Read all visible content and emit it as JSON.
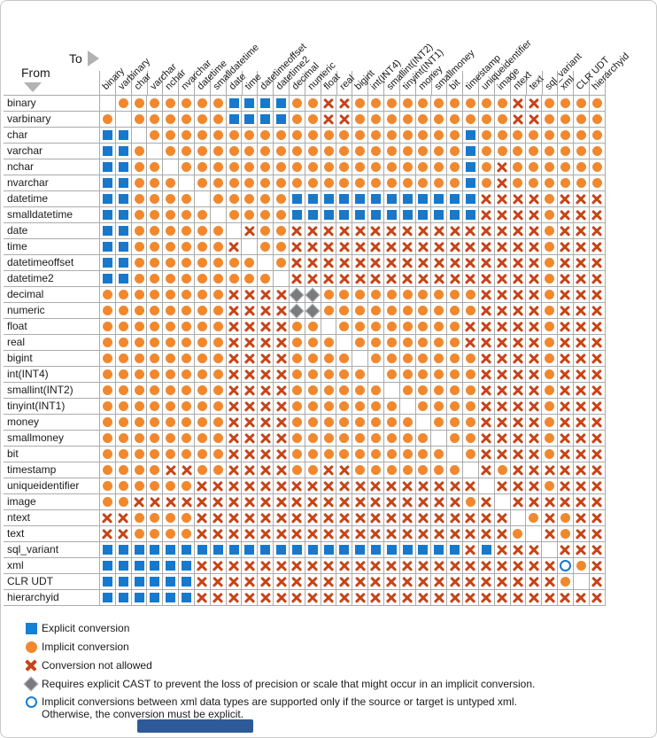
{
  "axis": {
    "from_label": "From",
    "to_label": "To"
  },
  "colors": {
    "explicit_blue": "#1679cd",
    "implicit_orange": "#f1882e",
    "not_allowed_red": "#c64418",
    "cast_diamond_gray": "#7a7b7e",
    "xml_open_circle_blue": "#1680d2",
    "grid_line": "#ababab",
    "bottom_bar_blue": "#2e5a97"
  },
  "legend": [
    {
      "symbol": "explicit-square",
      "code": "E",
      "label": "Explicit conversion"
    },
    {
      "symbol": "implicit-circle",
      "code": "I",
      "label": "Implicit conversion"
    },
    {
      "symbol": "not-allowed-x",
      "code": "X",
      "label": "Conversion not allowed"
    },
    {
      "symbol": "cast-diamond",
      "code": "D",
      "label": "Requires explicit CAST to prevent the loss of precision or scale that might occur in an implicit conversion."
    },
    {
      "symbol": "xml-open-circle",
      "code": "O",
      "label": "Implicit conversions between xml data types are supported only if the source or target is untyped xml.",
      "label_line2": "Otherwise, the conversion must be explicit."
    }
  ],
  "chart_data": {
    "type": "heatmap",
    "row_axis": "From",
    "col_axis": "To",
    "cell_codes": {
      ".": "blank (same type)",
      "I": "implicit conversion",
      "E": "explicit conversion",
      "X": "conversion not allowed",
      "D": "requires explicit CAST",
      "O": "implicit only if untyped xml"
    },
    "types": [
      "binary",
      "varbinary",
      "char",
      "varchar",
      "nchar",
      "nvarchar",
      "datetime",
      "smalldatetime",
      "date",
      "time",
      "datetimeoffset",
      "datetime2",
      "decimal",
      "numeric",
      "float",
      "real",
      "bigint",
      "int(INT4)",
      "smallint(INT2)",
      "tinyint(INT1)",
      "money",
      "smallmoney",
      "bit",
      "timestamp",
      "uniqueidentifier",
      "image",
      "ntext",
      "text",
      "sql_variant",
      "xml",
      "CLR UDT",
      "hierarchyid"
    ],
    "cells": [
      ".IIIIIIIEEEEIIXXIIIIIIIIIIXXIIII",
      "I.IIIIIIEEEEIIXXIIIIIIIIIIXXIIII",
      "EE.IIIIIIIIIIIIIIIIIIIIEIIIIIIII",
      "EEI.IIIIIIIIIIIIIIIIIIIEIIIIIIII",
      "EEII.IIIIIIIIIIIIIIIIIIEIXIIIIII",
      "EEIII.IIIIIIIIIIIIIIIIIEIXIIIIII",
      "EEIIII.IIIIIEEEEEEEEEEEEXXXXIXXX",
      "EEIIIII.IIIIEEEEEEEEEEEEXXXXIXXX",
      "EEIIIIII.XIIXXXXXXXXXXXXXXXXIXXX",
      "EEIIIIIIX.IIXXXXXXXXXXXXXXXXIXXX",
      "EEIIIIIIII.IXXXXXXXXXXXXXXXXIXXX",
      "EEIIIIIIIII.XXXXXXXXXXXXXXXXIXXX",
      "IIIIIIIIXXXXDDIIIIIIIIIIXXXXIXXX",
      "IIIIIIIIXXXXDDIIIIIIIIIIXXXXIXXX",
      "IIIIIIIIXXXXII.IIIIIIIIXXXXXIXXX",
      "IIIIIIIIXXXXIII.IIIIIIIXXXXXIXXX",
      "IIIIIIIIXXXXIIII.IIIIIIIXXXXIXXX",
      "IIIIIIIIXXXXIIIII.IIIIIIXXXXIXXX",
      "IIIIIIIIXXXXIIIIII.IIIIIXXXXIXXX",
      "IIIIIIIIXXXXIIIIIII.IIIIXXXXIXXX",
      "IIIIIIIIXXXXIIIIIIII.IIIXXXXIXXX",
      "IIIIIIIIXXXXIIIIIIIII.IIXXXXIXXX",
      "IIIIIIIIXXXXIIIIIIIIII.IXXXXIXXX",
      "IIIIXXIIXXXXIIXXIIIIIII.XIXXXXXX",
      "IIIIIIXXXXXXXXXXXXXXXXXX.XXXIXXX",
      "IIXXXXXXXXXXXXXXXXXXXXXIX.XXXXXX",
      "XXIIIIXXXXXXXXXXXXXXXXXXXX.IXIXX",
      "XXIIIIXXXXXXXXXXXXXXXXXXXXI.XIXX",
      "EEEEEEEEEEEEEEEEEEEEEEEXEXXX.XXX",
      "EEEEEEXXXXXXXXXXXXXXXXXXXXXXXOIX",
      "EEEEEEXXXXXXXXXXXXXXXXXXXXXXXI.X",
      "EEEEEEXXXXXXXXXXXXXXXXXXXXXXXXXX"
    ]
  }
}
